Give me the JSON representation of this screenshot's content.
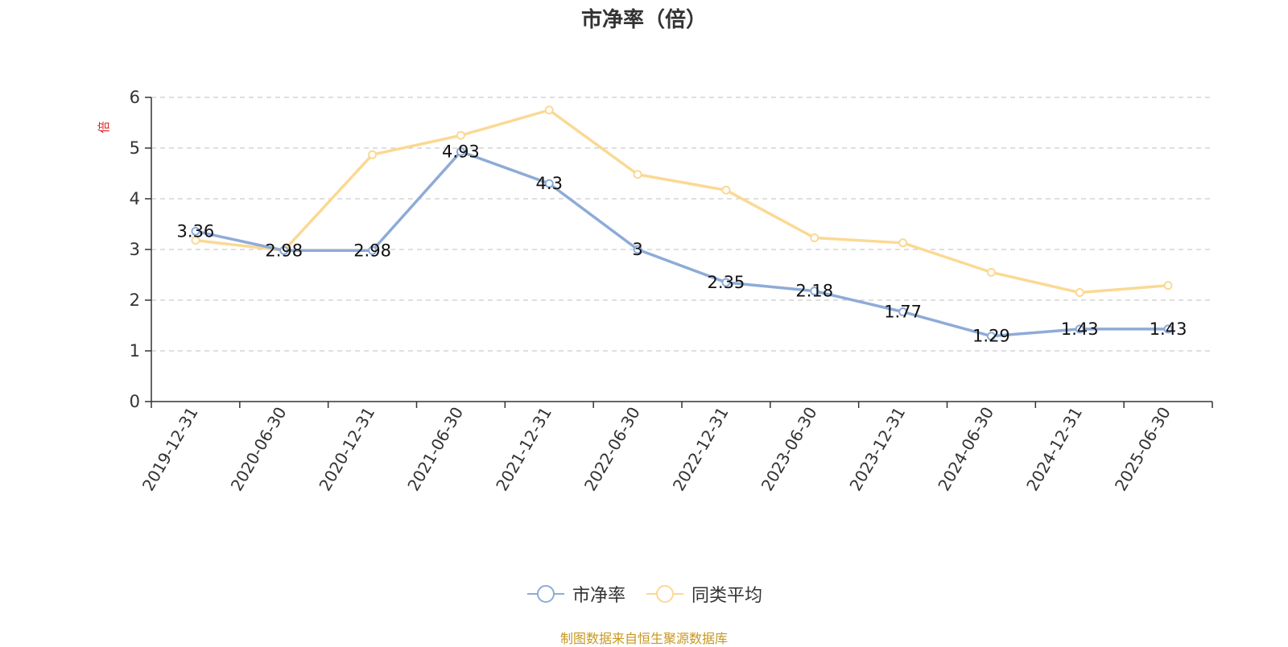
{
  "chart_data": {
    "type": "line",
    "title": "市净率（倍）",
    "ylabel": "倍",
    "categories": [
      "2019-12-31",
      "2020-06-30",
      "2020-12-31",
      "2021-06-30",
      "2021-12-31",
      "2022-06-30",
      "2022-12-31",
      "2023-06-30",
      "2023-12-31",
      "2024-06-30",
      "2024-12-31",
      "2025-06-30"
    ],
    "ylim": [
      0,
      6
    ],
    "yticks": [
      "0",
      "1",
      "2",
      "3",
      "4",
      "5",
      "6"
    ],
    "grid": true,
    "legend_position": "bottom",
    "series": [
      {
        "name": "市净率",
        "color": "#8eabd8",
        "values": [
          3.36,
          2.98,
          2.98,
          4.93,
          4.3,
          3,
          2.35,
          2.18,
          1.77,
          1.29,
          1.43,
          1.43
        ],
        "labels": [
          "3.36",
          "2.98",
          "2.98",
          "4.93",
          "4.3",
          "3",
          "2.35",
          "2.18",
          "1.77",
          "1.29",
          "1.43",
          "1.43"
        ]
      },
      {
        "name": "同类平均",
        "color": "#fbd994",
        "values": [
          3.18,
          2.98,
          4.87,
          5.25,
          5.75,
          4.48,
          4.17,
          3.23,
          3.13,
          2.55,
          2.15,
          2.29
        ]
      }
    ]
  },
  "source_text": "制图数据来自恒生聚源数据库"
}
